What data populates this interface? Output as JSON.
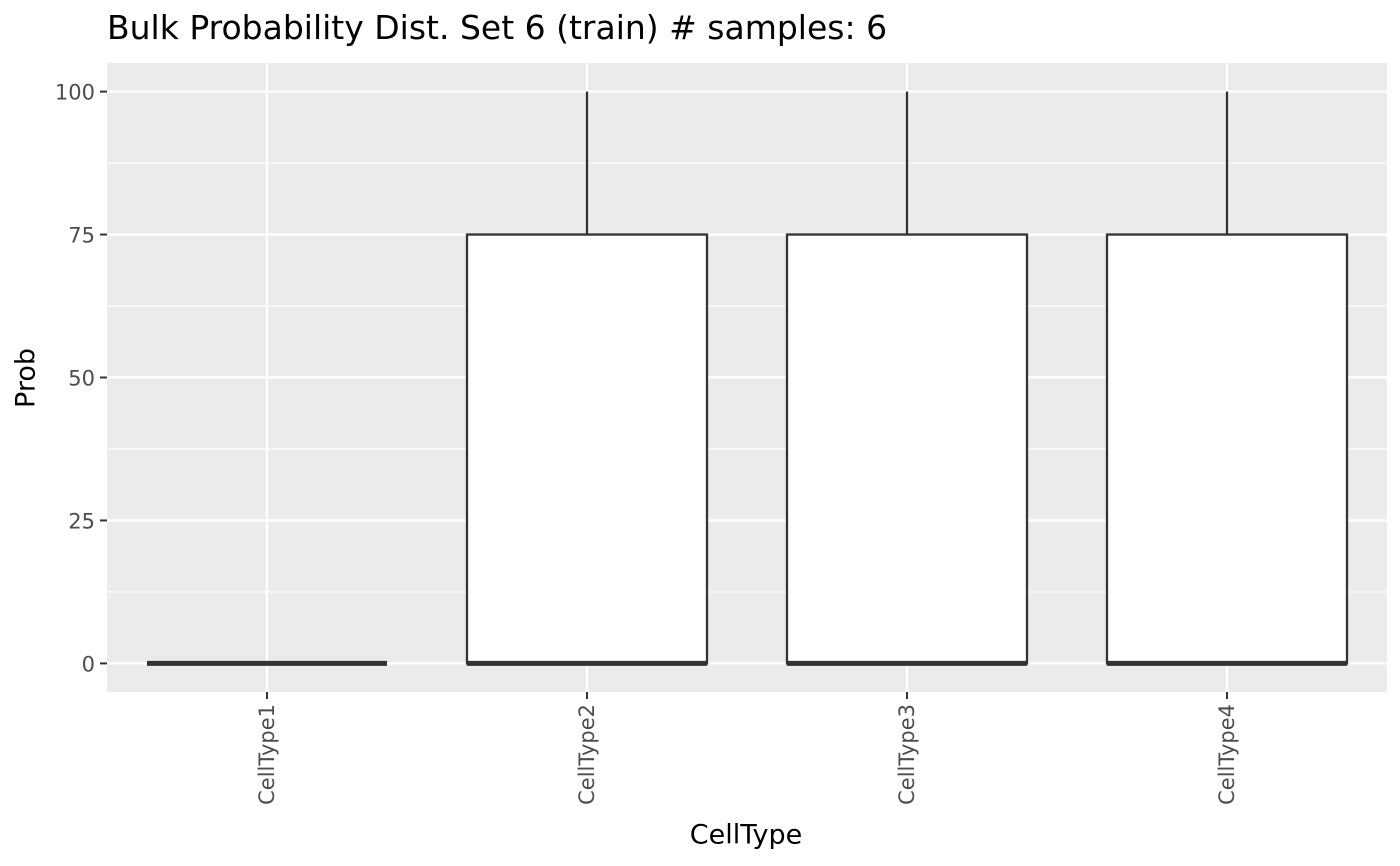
{
  "chart_data": {
    "type": "box",
    "title": "Bulk Probability Dist. Set 6 (train) # samples: 6",
    "xlabel": "CellType",
    "ylabel": "Prob",
    "ylim": [
      -5,
      105
    ],
    "yticks": [
      0,
      25,
      50,
      75,
      100
    ],
    "categories": [
      "CellType1",
      "CellType2",
      "CellType3",
      "CellType4"
    ],
    "boxes": [
      {
        "category": "CellType1",
        "min": 0,
        "q1": 0,
        "median": 0,
        "q3": 0,
        "max": 0
      },
      {
        "category": "CellType2",
        "min": 0,
        "q1": 0,
        "median": 0,
        "q3": 75,
        "max": 100
      },
      {
        "category": "CellType3",
        "min": 0,
        "q1": 0,
        "median": 0,
        "q3": 75,
        "max": 100
      },
      {
        "category": "CellType4",
        "min": 0,
        "q1": 0,
        "median": 0,
        "q3": 75,
        "max": 100
      }
    ],
    "grid": true,
    "legend": "none",
    "colors": {
      "panel": "#EBEBEB",
      "grid": "#FFFFFF",
      "box_fill": "#FFFFFF",
      "box_line": "#333333",
      "tick_text": "#4D4D4D"
    }
  }
}
